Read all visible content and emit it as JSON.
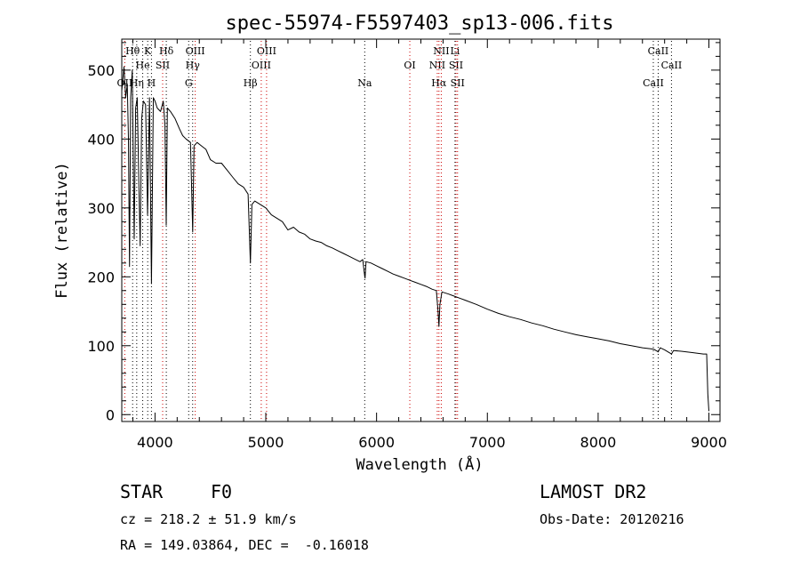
{
  "chart_data": {
    "type": "line",
    "title": "spec-55974-F5597403_sp13-006.fits",
    "xlabel": "Wavelength (Å)",
    "ylabel": "Flux (relative)",
    "xlim": [
      3700,
      9100
    ],
    "ylim": [
      -10,
      545
    ],
    "x_ticks": [
      4000,
      5000,
      6000,
      7000,
      8000,
      9000
    ],
    "y_ticks": [
      0,
      100,
      200,
      300,
      400,
      500
    ],
    "grid": false,
    "line_color": "#000000",
    "marker_line_color": "#cc0000",
    "series": [
      {
        "points": [
          [
            3700,
            470
          ],
          [
            3720,
            505
          ],
          [
            3735,
            460
          ],
          [
            3750,
            480
          ],
          [
            3760,
            400
          ],
          [
            3770,
            215
          ],
          [
            3780,
            460
          ],
          [
            3795,
            500
          ],
          [
            3805,
            350
          ],
          [
            3812,
            255
          ],
          [
            3825,
            445
          ],
          [
            3840,
            460
          ],
          [
            3855,
            330
          ],
          [
            3866,
            245
          ],
          [
            3880,
            430
          ],
          [
            3895,
            455
          ],
          [
            3915,
            450
          ],
          [
            3933,
            290
          ],
          [
            3950,
            460
          ],
          [
            3968,
            190
          ],
          [
            3985,
            460
          ],
          [
            4000,
            455
          ],
          [
            4020,
            445
          ],
          [
            4050,
            440
          ],
          [
            4075,
            455
          ],
          [
            4090,
            420
          ],
          [
            4101,
            275
          ],
          [
            4112,
            445
          ],
          [
            4140,
            440
          ],
          [
            4180,
            430
          ],
          [
            4220,
            415
          ],
          [
            4250,
            405
          ],
          [
            4280,
            400
          ],
          [
            4320,
            395
          ],
          [
            4340,
            265
          ],
          [
            4352,
            390
          ],
          [
            4380,
            395
          ],
          [
            4420,
            390
          ],
          [
            4460,
            385
          ],
          [
            4500,
            370
          ],
          [
            4550,
            365
          ],
          [
            4600,
            365
          ],
          [
            4650,
            355
          ],
          [
            4700,
            345
          ],
          [
            4750,
            335
          ],
          [
            4800,
            330
          ],
          [
            4840,
            320
          ],
          [
            4861,
            220
          ],
          [
            4875,
            305
          ],
          [
            4900,
            310
          ],
          [
            4950,
            305
          ],
          [
            5000,
            300
          ],
          [
            5050,
            290
          ],
          [
            5100,
            285
          ],
          [
            5150,
            280
          ],
          [
            5200,
            268
          ],
          [
            5250,
            272
          ],
          [
            5300,
            265
          ],
          [
            5350,
            262
          ],
          [
            5400,
            255
          ],
          [
            5450,
            252
          ],
          [
            5500,
            250
          ],
          [
            5550,
            245
          ],
          [
            5600,
            242
          ],
          [
            5650,
            238
          ],
          [
            5700,
            234
          ],
          [
            5750,
            230
          ],
          [
            5800,
            226
          ],
          [
            5850,
            222
          ],
          [
            5875,
            225
          ],
          [
            5890,
            205
          ],
          [
            5896,
            198
          ],
          [
            5905,
            222
          ],
          [
            5950,
            220
          ],
          [
            6000,
            216
          ],
          [
            6050,
            212
          ],
          [
            6100,
            208
          ],
          [
            6150,
            204
          ],
          [
            6200,
            201
          ],
          [
            6250,
            198
          ],
          [
            6300,
            195
          ],
          [
            6350,
            192
          ],
          [
            6400,
            189
          ],
          [
            6450,
            186
          ],
          [
            6500,
            182
          ],
          [
            6540,
            180
          ],
          [
            6555,
            150
          ],
          [
            6563,
            128
          ],
          [
            6572,
            160
          ],
          [
            6590,
            178
          ],
          [
            6650,
            175
          ],
          [
            6700,
            172
          ],
          [
            6750,
            169
          ],
          [
            6800,
            166
          ],
          [
            6900,
            160
          ],
          [
            7000,
            153
          ],
          [
            7100,
            147
          ],
          [
            7200,
            142
          ],
          [
            7300,
            138
          ],
          [
            7400,
            133
          ],
          [
            7500,
            129
          ],
          [
            7600,
            124
          ],
          [
            7700,
            120
          ],
          [
            7800,
            116
          ],
          [
            7900,
            113
          ],
          [
            8000,
            110
          ],
          [
            8100,
            107
          ],
          [
            8200,
            103
          ],
          [
            8300,
            100
          ],
          [
            8400,
            97
          ],
          [
            8500,
            95
          ],
          [
            8542,
            91
          ],
          [
            8560,
            97
          ],
          [
            8600,
            94
          ],
          [
            8662,
            88
          ],
          [
            8680,
            93
          ],
          [
            8750,
            92
          ],
          [
            8850,
            90
          ],
          [
            8950,
            88
          ],
          [
            8980,
            88
          ],
          [
            8990,
            30
          ],
          [
            9000,
            5
          ]
        ]
      }
    ],
    "line_markers": [
      {
        "label": "OII",
        "x": 3727,
        "row": 3,
        "color": "#cc0000"
      },
      {
        "label": "Hθ",
        "x": 3798,
        "row": 1,
        "color": "#000000"
      },
      {
        "label": "Hη",
        "x": 3835,
        "row": 3,
        "color": "#000000"
      },
      {
        "label": "He",
        "x": 3889,
        "row": 2,
        "color": "#000000"
      },
      {
        "label": "K",
        "x": 3934,
        "row": 1,
        "color": "#000000"
      },
      {
        "label": "H",
        "x": 3968,
        "row": 3,
        "color": "#000000"
      },
      {
        "label": "SII",
        "x": 4069,
        "row": 2,
        "color": "#cc0000"
      },
      {
        "label": "Hδ",
        "x": 4102,
        "row": 1,
        "color": "#000000"
      },
      {
        "label": "G",
        "x": 4304,
        "row": 3,
        "color": "#000000"
      },
      {
        "label": "Hγ",
        "x": 4340,
        "row": 2,
        "color": "#000000"
      },
      {
        "label": "OIII",
        "x": 4363,
        "row": 1,
        "color": "#cc0000"
      },
      {
        "label": "Hβ",
        "x": 4861,
        "row": 3,
        "color": "#000000"
      },
      {
        "label": "OIII",
        "x": 4959,
        "row": 2,
        "color": "#cc0000"
      },
      {
        "label": "OIII",
        "x": 5007,
        "row": 1,
        "color": "#cc0000"
      },
      {
        "label": "Na",
        "x": 5893,
        "row": 3,
        "color": "#000000"
      },
      {
        "label": "OI",
        "x": 6300,
        "row": 2,
        "color": "#cc0000"
      },
      {
        "label": "NII",
        "x": 6548,
        "row": 2,
        "color": "#cc0000"
      },
      {
        "label": "Hα",
        "x": 6563,
        "row": 3,
        "color": "#cc0000"
      },
      {
        "label": "NII",
        "x": 6584,
        "row": 1,
        "color": "#cc0000"
      },
      {
        "label": "Li",
        "x": 6708,
        "row": 1,
        "color": "#000000"
      },
      {
        "label": "SII",
        "x": 6717,
        "row": 2,
        "color": "#cc0000"
      },
      {
        "label": "SII",
        "x": 6731,
        "row": 3,
        "color": "#cc0000"
      },
      {
        "label": "CaII",
        "x": 8498,
        "row": 3,
        "color": "#000000"
      },
      {
        "label": "CaII",
        "x": 8542,
        "row": 1,
        "color": "#000000"
      },
      {
        "label": "CaII",
        "x": 8662,
        "row": 2,
        "color": "#000000"
      }
    ]
  },
  "info": {
    "object_class": "STAR",
    "subclass": "F0",
    "survey": "LAMOST DR2",
    "cz": "cz = 218.2 ± 51.9 km/s",
    "obs_date": "Obs-Date: 20120216",
    "coords": "RA = 149.03864, DEC =  -0.16018"
  }
}
